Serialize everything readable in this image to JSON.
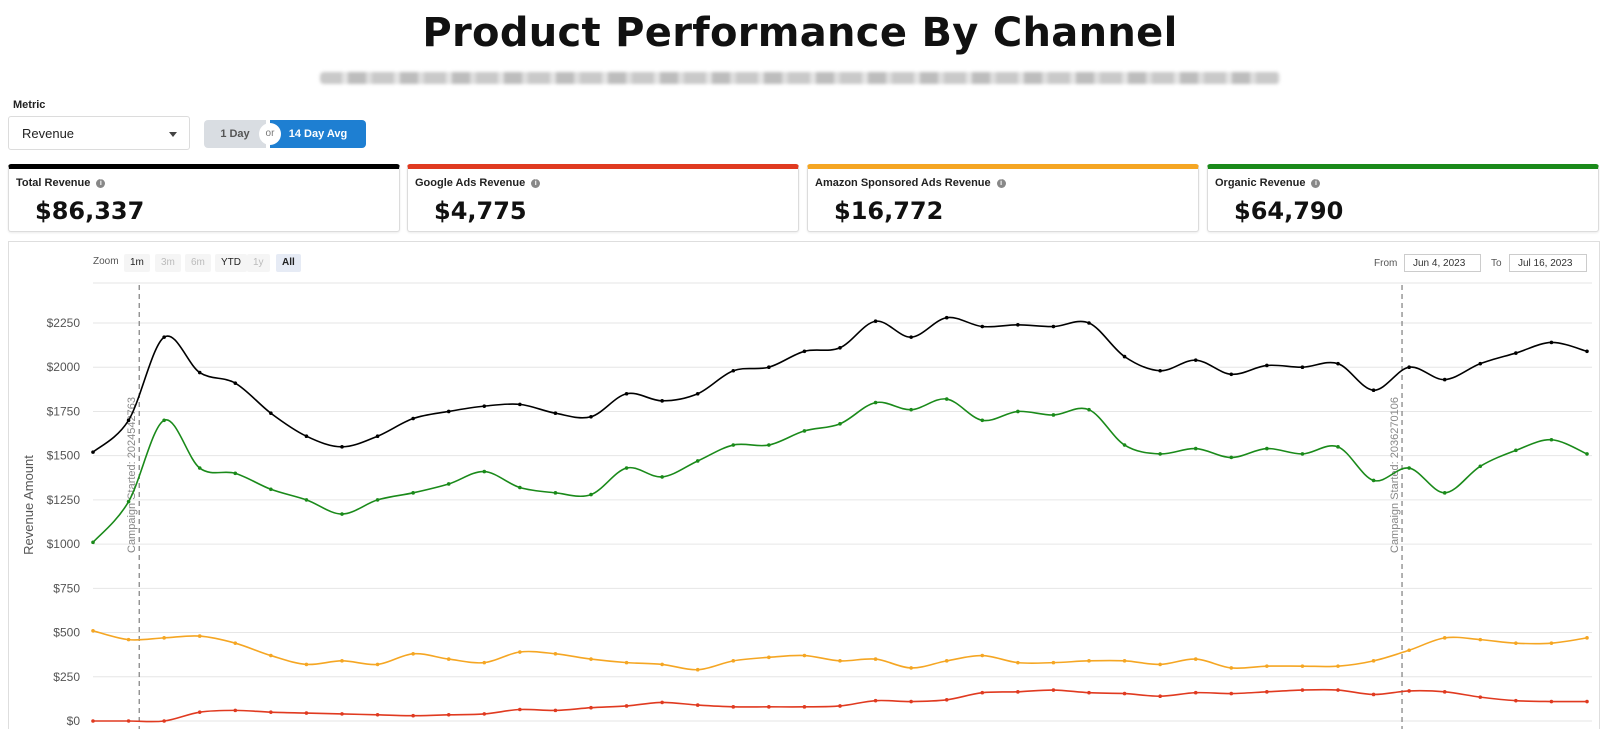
{
  "page": {
    "title": "Product Performance By Channel"
  },
  "controls": {
    "metric_label": "Metric",
    "metric_value": "Revenue",
    "toggle": {
      "option_a": "1 Day",
      "or": "or",
      "option_b": "14 Day Avg",
      "selected": "14 Day Avg"
    }
  },
  "cards": [
    {
      "label": "Total Revenue",
      "value": "$86,337",
      "color": "#000000"
    },
    {
      "label": "Google Ads Revenue",
      "value": "$4,775",
      "color": "#e03a20"
    },
    {
      "label": "Amazon Sponsored Ads Revenue",
      "value": "$16,772",
      "color": "#f5a623"
    },
    {
      "label": "Organic Revenue",
      "value": "$64,790",
      "color": "#1a8a1a"
    }
  ],
  "range_selector": {
    "zoom_label": "Zoom",
    "buttons": [
      "1m",
      "3m",
      "6m",
      "YTD",
      "1y",
      "All"
    ],
    "enabled": [
      "1m",
      "YTD",
      "All"
    ],
    "selected": "All",
    "from_label": "From",
    "from_value": "Jun 4, 2023",
    "to_label": "To",
    "to_value": "Jul 16, 2023"
  },
  "chart_data": {
    "type": "line",
    "ylabel": "Revenue Amount",
    "ylim": [
      0,
      2250
    ],
    "yticks": [
      0,
      250,
      500,
      750,
      1000,
      1250,
      1500,
      1750,
      2000,
      2250
    ],
    "ytick_labels": [
      "$0",
      "$250",
      "$500",
      "$750",
      "$1000",
      "$1250",
      "$1500",
      "$1750",
      "$2000",
      "$2250"
    ],
    "grid": true,
    "x_points": 43,
    "annotations": [
      {
        "index": 1.3,
        "label": "Campaign Started: 2024542763"
      },
      {
        "index": 36.8,
        "label": "Campaign Started: 2036270106"
      }
    ],
    "series": [
      {
        "color": "#000000",
        "values": [
          1520,
          1700,
          2170,
          1970,
          1910,
          1740,
          1610,
          1550,
          1610,
          1710,
          1750,
          1780,
          1790,
          1740,
          1720,
          1850,
          1810,
          1850,
          1980,
          2000,
          2090,
          2110,
          2260,
          2170,
          2280,
          2230,
          2240,
          2230,
          2250,
          2060,
          1980,
          2040,
          1960,
          2010,
          2000,
          2020,
          1870,
          2000,
          1930,
          2020,
          2080,
          2140,
          2090
        ]
      },
      {
        "color": "#1a8a1a",
        "values": [
          1010,
          1240,
          1700,
          1430,
          1400,
          1310,
          1250,
          1170,
          1250,
          1290,
          1340,
          1410,
          1320,
          1290,
          1280,
          1430,
          1380,
          1470,
          1560,
          1560,
          1640,
          1680,
          1800,
          1760,
          1820,
          1700,
          1750,
          1730,
          1760,
          1560,
          1510,
          1540,
          1490,
          1540,
          1510,
          1550,
          1360,
          1430,
          1290,
          1440,
          1530,
          1590,
          1510
        ]
      },
      {
        "color": "#f5a623",
        "values": [
          510,
          460,
          470,
          480,
          440,
          370,
          320,
          340,
          320,
          380,
          350,
          330,
          390,
          380,
          350,
          330,
          320,
          290,
          340,
          360,
          370,
          340,
          350,
          300,
          340,
          370,
          330,
          330,
          340,
          340,
          320,
          350,
          300,
          310,
          310,
          310,
          340,
          400,
          470,
          460,
          440,
          440,
          470
        ]
      },
      {
        "color": "#e03a20",
        "values": [
          0,
          0,
          0,
          50,
          60,
          50,
          45,
          40,
          35,
          30,
          35,
          40,
          65,
          60,
          75,
          85,
          105,
          90,
          80,
          80,
          80,
          85,
          115,
          110,
          120,
          160,
          165,
          175,
          160,
          155,
          140,
          160,
          155,
          165,
          175,
          175,
          150,
          170,
          165,
          135,
          115,
          110,
          110
        ]
      }
    ]
  }
}
